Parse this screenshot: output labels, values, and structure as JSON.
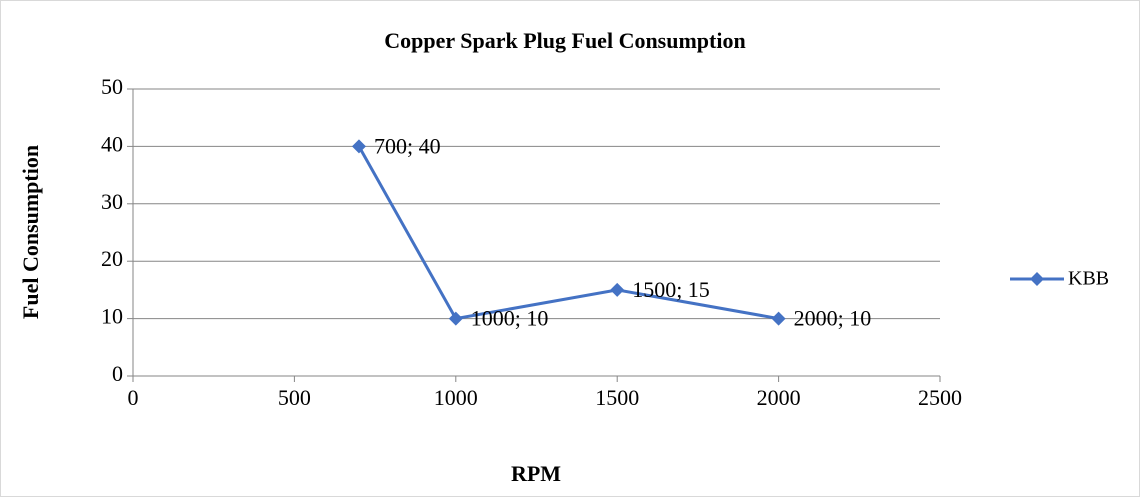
{
  "chart_data": {
    "type": "line",
    "title": "Copper Spark Plug Fuel Consumption",
    "xlabel": "RPM",
    "ylabel": "Fuel Consumption",
    "x": [
      700,
      1000,
      1500,
      2000
    ],
    "series": [
      {
        "name": "KBB",
        "color": "#4472c4",
        "values": [
          40,
          10,
          15,
          10
        ],
        "value_labels": [
          "700; 40",
          "1000; 10",
          "1500; 15",
          "2000; 10"
        ]
      }
    ],
    "xlim": [
      0,
      2500
    ],
    "xticks": [
      0,
      500,
      1000,
      1500,
      2000,
      2500
    ],
    "ylim": [
      0,
      50
    ],
    "yticks": [
      0,
      10,
      20,
      30,
      40,
      50
    ],
    "grid": true,
    "legend": "right"
  }
}
